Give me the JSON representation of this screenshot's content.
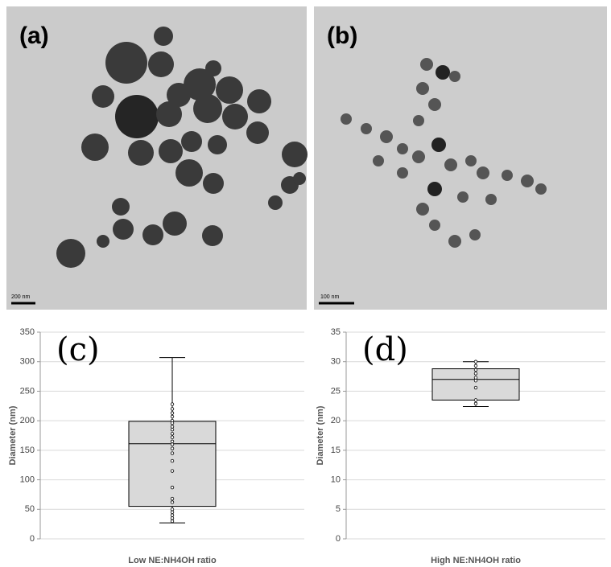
{
  "panels": [
    {
      "label": "(a)",
      "scale_bar": "200 nm"
    },
    {
      "label": "(b)",
      "scale_bar": "100 nm"
    }
  ],
  "chart_data": [
    {
      "type": "box",
      "annotation": "(c)",
      "y_label": "Diameter (nm)",
      "categories": [
        "Low NE:NH4OH ratio"
      ],
      "min": 27,
      "q1": 55,
      "median": 161,
      "q3": 199,
      "max": 307,
      "points": [
        228,
        220,
        213,
        207,
        200,
        196,
        190,
        185,
        178,
        172,
        165,
        160,
        153,
        145,
        132,
        115,
        87,
        68,
        62,
        50,
        45,
        40,
        35,
        30
      ],
      "color": "#d9d9d9",
      "ylim": [
        0,
        350
      ],
      "yticks": [
        0,
        50,
        100,
        150,
        200,
        250,
        300,
        350
      ],
      "grid": true
    },
    {
      "type": "box",
      "annotation": "(d)",
      "y_label": "Diameter (nm)",
      "categories": [
        "High NE:NH4OH ratio"
      ],
      "min": 22.4,
      "q1": 23.5,
      "median": 27,
      "q3": 28.8,
      "max": 30,
      "points": [
        30,
        29.3,
        28.6,
        28,
        27.3,
        26.8,
        25.6,
        23.5,
        22.9
      ],
      "color": "#d9d9d9",
      "ylim": [
        0,
        35
      ],
      "yticks": [
        0,
        5,
        10,
        15,
        20,
        25,
        30,
        35
      ],
      "grid": true
    }
  ]
}
